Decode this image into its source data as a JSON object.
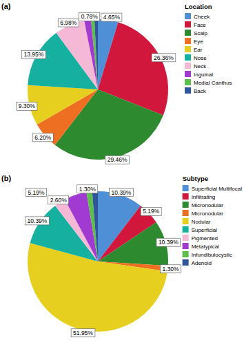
{
  "chart_data": [
    {
      "type": "pie",
      "title": "(a)",
      "legend_title": "Location",
      "categories": [
        "Cheek",
        "Face",
        "Scalp",
        "Eye",
        "Ear",
        "Nose",
        "Neck",
        "Inguinal",
        "Medial Canthus",
        "Back"
      ],
      "values": [
        4.65,
        26.36,
        29.46,
        6.2,
        9.3,
        13.95,
        6.98,
        1.55,
        0.78,
        0.78
      ],
      "value_labels": [
        "4.65%",
        "26.36%",
        "29.46%",
        "6.20%",
        "9.30%",
        "13.95%",
        "6.98%",
        null,
        "0.78%",
        null
      ],
      "colors": [
        "#4f8fd6",
        "#d2173d",
        "#2e8a2e",
        "#ee6f22",
        "#e6cf1f",
        "#16b0a0",
        "#f5b9d6",
        "#a13ad0",
        "#5cbf4c",
        "#2f569a"
      ],
      "data_labels": true,
      "legend": "right"
    },
    {
      "type": "pie",
      "title": "(b)",
      "legend_title": "Subtype",
      "categories": [
        "Superficial Multifocal",
        "Infiltrating",
        "Micronodular",
        "Micronodular",
        "Nodular",
        "Superficial",
        "Pigmented",
        "Metatypical",
        "Infundibulocystic",
        "Adenoid"
      ],
      "values": [
        10.39,
        5.19,
        10.39,
        1.3,
        51.95,
        10.39,
        2.6,
        5.19,
        1.3,
        1.3
      ],
      "value_labels": [
        "10.39%",
        "5.19%",
        "10.39%",
        "1.30%",
        "51.95%",
        "10.39%",
        "2.60%",
        "5.19%",
        "1.30%",
        null
      ],
      "colors": [
        "#4f8fd6",
        "#d2173d",
        "#2e8a2e",
        "#ee6f22",
        "#e6cf1f",
        "#16b0a0",
        "#f5b9d6",
        "#a13ad0",
        "#5cbf4c",
        "#2f569a"
      ],
      "data_labels": true,
      "legend": "right"
    }
  ]
}
